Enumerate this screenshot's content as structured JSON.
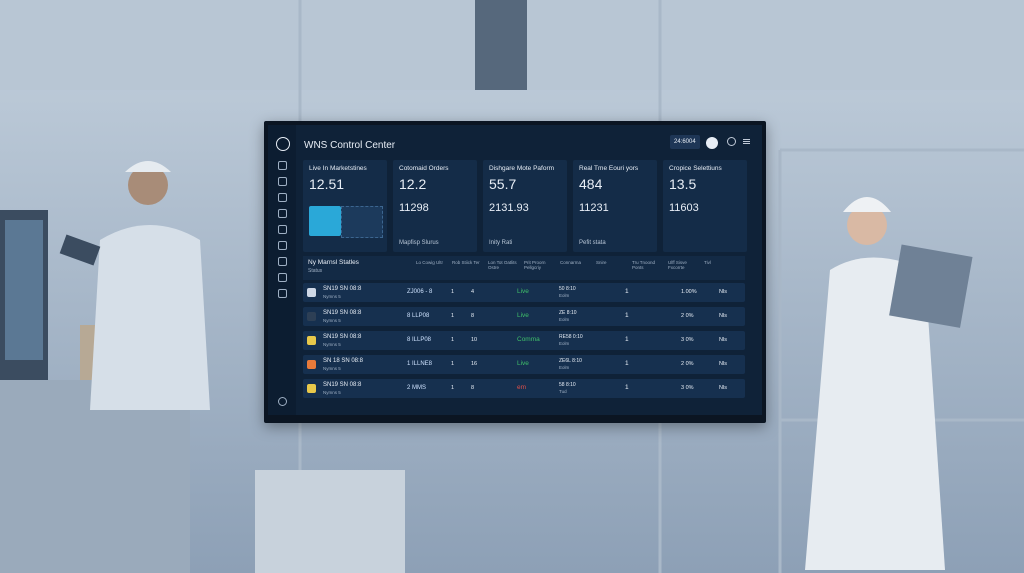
{
  "header": {
    "title": "WNS Control Center",
    "badge": "24:6004"
  },
  "cards": [
    {
      "label": "Live In Marketstines",
      "value": "12.51"
    },
    {
      "label": "Cotomaid Orders",
      "value": "12.2",
      "subvalue": "11298",
      "footer": "Mapfisp Slurus"
    },
    {
      "label": "Dishgare Mote Paform",
      "value": "55.7",
      "subvalue": "2131.93",
      "footer": "Inity Rati"
    },
    {
      "label": "Real Tme Eouri yors",
      "value": "484",
      "subvalue": "11231",
      "footer": "Pefit stata"
    },
    {
      "label": "Cropice Selettiuns",
      "value": "13.5",
      "subvalue": "11603"
    }
  ],
  "table": {
    "title": "Ny Marnsl Statles",
    "subtitle": "Status",
    "columns": [
      "Lo Cowig Ultr",
      "Rob Stiick Ter",
      "Lon Tot Oatlits Ostre",
      "Prit Proorn Pellgcriy",
      "Connarma",
      "Snire",
      "Tru Tnoond Ponts",
      "Ulff Sisve Fxcorrte",
      "Tivl"
    ],
    "rows": [
      {
        "icon_color": "#cfd8e6",
        "name": "SN19 SN 08:8",
        "sub": "Nymns 5",
        "metric": "ZJ006 - 8",
        "a": "1",
        "b": "4",
        "status": "Live",
        "status_color": "#3fbf6a",
        "detail": "50 8:10",
        "detail2": "Eolm",
        "mark": "1",
        "pct": "1.00%",
        "tail": "Nls"
      },
      {
        "icon_color": "#2d3f55",
        "name": "SN19 SN 08:8",
        "sub": "Nymns 5",
        "metric": "8 LLP08",
        "a": "1",
        "b": "8",
        "status": "Live",
        "status_color": "#3fbf6a",
        "detail": "ZE 8:10",
        "detail2": "Eolm",
        "mark": "1",
        "pct": "2 0%",
        "tail": "Nls"
      },
      {
        "icon_color": "#e8c84a",
        "name": "SN19 SN 08:8",
        "sub": "Nymns 5",
        "metric": "8 ILLP08",
        "a": "1",
        "b": "10",
        "status": "Comma",
        "status_color": "#3fbf6a",
        "detail": "RE58 0:10",
        "detail2": "Eolm",
        "mark": "1",
        "pct": "3 0%",
        "tail": "Nls"
      },
      {
        "icon_color": "#e87a3a",
        "name": "SN 18 SN 08:8",
        "sub": "Nymns 5",
        "metric": "1 ILLNE8",
        "a": "1",
        "b": "16",
        "status": "Live",
        "status_color": "#3fbf6a",
        "detail": "ZE6L 8:10",
        "detail2": "Eolm",
        "mark": "1",
        "pct": "2 0%",
        "tail": "Nls"
      },
      {
        "icon_color": "#e8c84a",
        "name": "SN19 SN 08:8",
        "sub": "Nymns 5",
        "metric": "2 MMS",
        "a": "1",
        "b": "8",
        "status": "em",
        "status_color": "#e0504a",
        "detail": "58 8:10",
        "detail2": "Tud",
        "mark": "1",
        "pct": "3 0%",
        "tail": "Nls"
      }
    ]
  }
}
